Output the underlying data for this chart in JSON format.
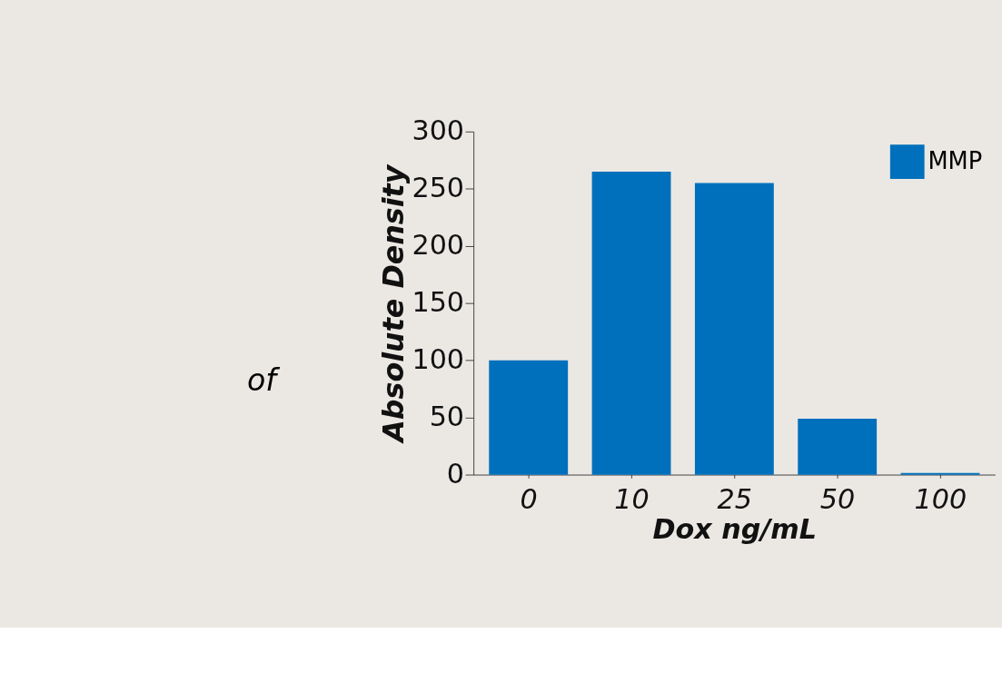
{
  "chart_data": {
    "type": "bar",
    "xlabel": "Dox ng/mL",
    "ylabel": "Absolute Density",
    "categories": [
      "0",
      "10",
      "25",
      "50",
      "100"
    ],
    "series": [
      {
        "name": "MMP",
        "color": "#0070bc",
        "values": [
          100,
          265,
          255,
          49,
          1.5
        ]
      }
    ],
    "ylim": [
      0,
      300
    ],
    "yticks": [
      0,
      50,
      100,
      150,
      200,
      250,
      300
    ],
    "grid": false,
    "legend": "top right",
    "annotations": [
      "of"
    ]
  }
}
